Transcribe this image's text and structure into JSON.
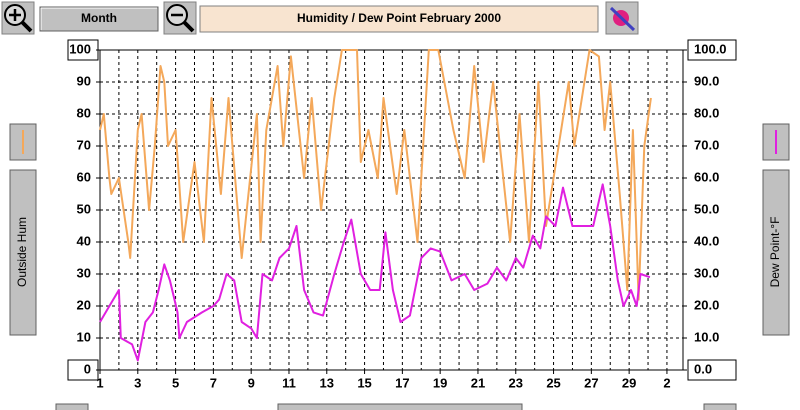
{
  "title": "Humidity  /  Dew Point   February 2000",
  "toolbar": {
    "period": "Month"
  },
  "chart_data": {
    "type": "line",
    "xlim": [
      1,
      31.85
    ],
    "xticks": [
      1,
      3,
      5,
      7,
      9,
      11,
      13,
      15,
      17,
      19,
      21,
      23,
      25,
      27,
      29,
      {
        "value": 31,
        "label": "2"
      }
    ],
    "x_grid": [
      2,
      4,
      6,
      8,
      10,
      12,
      14,
      16,
      18,
      20,
      22,
      24,
      26,
      28,
      30
    ],
    "ylim": [
      0,
      100
    ],
    "yticks": [
      0,
      10,
      20,
      30,
      40,
      50,
      60,
      70,
      80,
      90,
      100
    ],
    "y2lim": [
      0,
      100
    ],
    "y2ticks": [
      {
        "value": 0,
        "label": "0.0"
      },
      {
        "value": 10,
        "label": "10.0"
      },
      {
        "value": 20,
        "label": "20.0"
      },
      {
        "value": 30,
        "label": "30.0"
      },
      {
        "value": 40,
        "label": "40.0"
      },
      {
        "value": 50,
        "label": "50.0"
      },
      {
        "value": 60,
        "label": "60.0"
      },
      {
        "value": 70,
        "label": "70.0"
      },
      {
        "value": 80,
        "label": "80.0"
      },
      {
        "value": 90,
        "label": "90.0"
      },
      {
        "value": 100,
        "label": "100.0"
      }
    ],
    "grid": true,
    "series": [
      {
        "name": "Outside Hum",
        "color": "#f4a85a",
        "axis": "y",
        "x": [
          1,
          1.2,
          1.5,
          1.6,
          2,
          2.5,
          2.6,
          3,
          3.2,
          3.6,
          3.9,
          4.2,
          4.4,
          4.6,
          5,
          5.4,
          6,
          6.5,
          6.9,
          7.4,
          7.8,
          8.5,
          9.3,
          9.5,
          9.8,
          10.4,
          10.7,
          11.1,
          11.8,
          12.2,
          12.7,
          13.4,
          13.8,
          14.6,
          14.8,
          15.2,
          15.7,
          16,
          16.7,
          17.1,
          17.8,
          18.4,
          18.9,
          19.7,
          20.3,
          20.8,
          21.3,
          21.8,
          22.7,
          23.2,
          23.7,
          24.2,
          24.6,
          25.8,
          26.1,
          26.9,
          27.4,
          27.7,
          28,
          28.5,
          28.9,
          29.2,
          29.5,
          29.8,
          30.15
        ],
        "values": [
          75,
          80,
          60,
          55,
          60,
          40,
          35,
          75,
          80,
          50,
          70,
          95,
          90,
          70,
          75,
          40,
          65,
          40,
          85,
          55,
          85,
          35,
          80,
          40,
          75,
          95,
          70,
          98,
          60,
          85,
          50,
          85,
          100,
          100,
          65,
          75,
          60,
          85,
          55,
          75,
          40,
          100,
          100,
          75,
          60,
          95,
          65,
          90,
          40,
          80,
          40,
          90,
          45,
          90,
          70,
          100,
          98,
          75,
          90,
          55,
          25,
          75,
          22,
          70,
          85
        ]
      },
      {
        "name": "Dew Point-°F",
        "color": "#e020e0",
        "axis": "y2",
        "x": [
          1,
          1.5,
          2,
          2.1,
          2.7,
          3,
          3.4,
          3.8,
          4.1,
          4.4,
          4.7,
          5.1,
          5.2,
          5.6,
          6.4,
          7,
          7.3,
          7.7,
          8.1,
          8.5,
          9,
          9.3,
          9.6,
          10.1,
          10.5,
          11,
          11.4,
          11.8,
          12.3,
          12.8,
          13.4,
          13.9,
          14.3,
          14.8,
          15.3,
          15.8,
          16.1,
          16.5,
          16.9,
          17.4,
          18,
          18.5,
          19,
          19.6,
          20.3,
          20.8,
          21.5,
          22,
          22.5,
          23,
          23.4,
          23.9,
          24.3,
          24.6,
          25.1,
          25.5,
          26,
          26.6,
          27.1,
          27.6,
          28,
          28.4,
          28.7,
          29.1,
          29.4,
          29.6,
          30.1
        ],
        "values": [
          15,
          20,
          25,
          10,
          8,
          3,
          15,
          18,
          25,
          33,
          28,
          18,
          10,
          15,
          18,
          20,
          22,
          30,
          28,
          15,
          13,
          10,
          30,
          28,
          35,
          38,
          45,
          25,
          18,
          17,
          30,
          40,
          47,
          30,
          25,
          25,
          43,
          25,
          15,
          17,
          35,
          38,
          37,
          28,
          30,
          25,
          27,
          32,
          28,
          35,
          32,
          42,
          38,
          48,
          45,
          57,
          45,
          45,
          45,
          58,
          45,
          28,
          20,
          25,
          20,
          30,
          29
        ]
      }
    ]
  }
}
